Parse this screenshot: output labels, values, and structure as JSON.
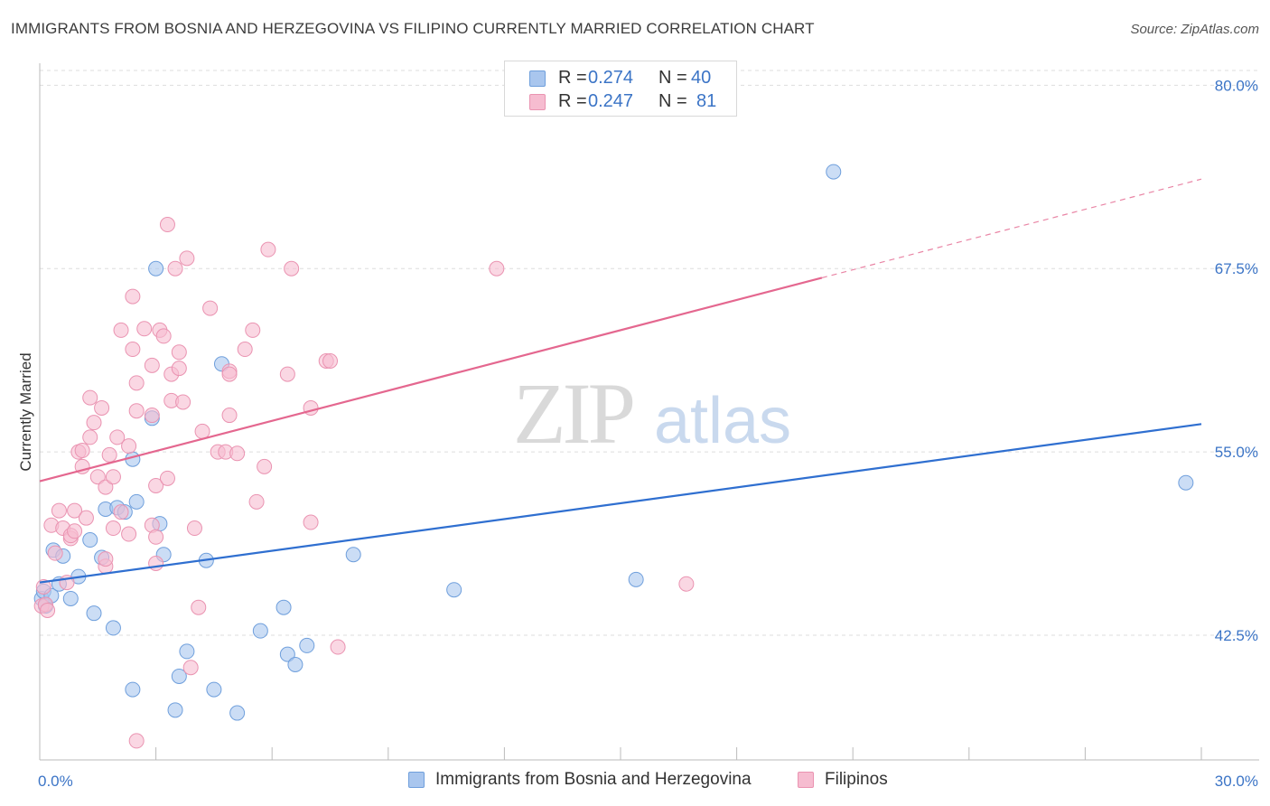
{
  "header": {
    "title": "IMMIGRANTS FROM BOSNIA AND HERZEGOVINA VS FILIPINO CURRENTLY MARRIED CORRELATION CHART",
    "source": "Source: ZipAtlas.com"
  },
  "legend": {
    "r_label": "R =",
    "n_label": "N =",
    "entries": [
      {
        "r": "0.274",
        "n": "40"
      },
      {
        "r": "0.247",
        "n": "81"
      }
    ]
  },
  "watermark": {
    "zip": "ZIP",
    "atlas": "atlas"
  },
  "colors": {
    "blue_fill": "#a9c6ee",
    "blue_stroke": "#6f9fdc",
    "blue_line": "#2f6fd0",
    "pink_fill": "#f6bcd0",
    "pink_stroke": "#ea93b1",
    "pink_line": "#e4678f",
    "tick_text": "#3b74c6",
    "grid": "#dddddd"
  },
  "chart_data": {
    "type": "scatter",
    "title": "IMMIGRANTS FROM BOSNIA AND HERZEGOVINA VS FILIPINO CURRENTLY MARRIED CORRELATION CHART",
    "xlabel": "",
    "ylabel": "Currently Married",
    "xlim": [
      0,
      30
    ],
    "ylim": [
      34,
      81.5
    ],
    "x_tick_labels": [
      {
        "value": 0,
        "label": "0.0%"
      },
      {
        "value": 30,
        "label": "30.0%"
      }
    ],
    "y_tick_labels": [
      {
        "value": 80.0,
        "label": "80.0%"
      },
      {
        "value": 67.5,
        "label": "67.5%"
      },
      {
        "value": 55.0,
        "label": "55.0%"
      },
      {
        "value": 42.5,
        "label": "42.5%"
      }
    ],
    "series": [
      {
        "name": "Immigrants from Bosnia and Herzegovina",
        "color": "#a9c6ee",
        "trend": {
          "x": [
            0,
            30
          ],
          "y": [
            46.1,
            56.9
          ],
          "dashed_from": null
        },
        "points": [
          [
            0.05,
            45.0
          ],
          [
            0.1,
            45.5
          ],
          [
            0.15,
            44.5
          ],
          [
            0.3,
            45.2
          ],
          [
            0.35,
            48.3
          ],
          [
            0.5,
            46.0
          ],
          [
            0.6,
            47.9
          ],
          [
            0.8,
            45.0
          ],
          [
            1.0,
            46.5
          ],
          [
            1.3,
            49.0
          ],
          [
            1.4,
            44.0
          ],
          [
            1.6,
            47.8
          ],
          [
            1.7,
            51.1
          ],
          [
            1.9,
            43.0
          ],
          [
            2.0,
            51.2
          ],
          [
            2.2,
            50.9
          ],
          [
            2.4,
            38.8
          ],
          [
            2.4,
            54.5
          ],
          [
            2.5,
            51.6
          ],
          [
            2.9,
            57.3
          ],
          [
            3.0,
            67.5
          ],
          [
            3.1,
            50.1
          ],
          [
            3.2,
            48.0
          ],
          [
            3.5,
            37.4
          ],
          [
            3.6,
            39.7
          ],
          [
            3.8,
            41.4
          ],
          [
            4.3,
            47.6
          ],
          [
            4.5,
            38.8
          ],
          [
            4.7,
            61.0
          ],
          [
            5.1,
            37.2
          ],
          [
            5.7,
            42.8
          ],
          [
            6.3,
            44.4
          ],
          [
            6.4,
            41.2
          ],
          [
            6.6,
            40.5
          ],
          [
            6.9,
            41.8
          ],
          [
            8.1,
            48.0
          ],
          [
            10.7,
            45.6
          ],
          [
            15.4,
            46.3
          ],
          [
            20.5,
            74.1
          ],
          [
            29.6,
            52.9
          ]
        ]
      },
      {
        "name": "Filipinos",
        "color": "#f6bcd0",
        "trend": {
          "x": [
            0,
            30
          ],
          "y": [
            53.0,
            73.6
          ],
          "dashed_from": 20.2
        },
        "points": [
          [
            0.05,
            44.5
          ],
          [
            0.1,
            45.8
          ],
          [
            0.15,
            44.6
          ],
          [
            0.2,
            44.2
          ],
          [
            0.3,
            50.0
          ],
          [
            0.4,
            48.1
          ],
          [
            0.5,
            51.0
          ],
          [
            0.6,
            49.8
          ],
          [
            0.7,
            46.1
          ],
          [
            0.8,
            49.1
          ],
          [
            0.8,
            49.3
          ],
          [
            0.9,
            49.6
          ],
          [
            0.9,
            51.0
          ],
          [
            1.0,
            55.0
          ],
          [
            1.1,
            54.0
          ],
          [
            1.1,
            55.1
          ],
          [
            1.2,
            50.5
          ],
          [
            1.3,
            56.0
          ],
          [
            1.3,
            58.7
          ],
          [
            1.4,
            57.0
          ],
          [
            1.5,
            53.3
          ],
          [
            1.6,
            58.0
          ],
          [
            1.7,
            47.2
          ],
          [
            1.7,
            47.7
          ],
          [
            1.7,
            52.6
          ],
          [
            1.8,
            54.8
          ],
          [
            1.9,
            49.8
          ],
          [
            1.9,
            53.3
          ],
          [
            2.0,
            56.0
          ],
          [
            2.1,
            63.3
          ],
          [
            2.1,
            50.9
          ],
          [
            2.3,
            49.4
          ],
          [
            2.3,
            55.4
          ],
          [
            2.4,
            62.0
          ],
          [
            2.4,
            65.6
          ],
          [
            2.5,
            59.7
          ],
          [
            2.5,
            57.8
          ],
          [
            2.5,
            35.3
          ],
          [
            2.7,
            63.4
          ],
          [
            2.9,
            50.0
          ],
          [
            2.9,
            60.9
          ],
          [
            2.9,
            57.5
          ],
          [
            3.0,
            52.7
          ],
          [
            3.0,
            47.4
          ],
          [
            3.0,
            49.2
          ],
          [
            3.1,
            63.3
          ],
          [
            3.2,
            62.9
          ],
          [
            3.3,
            53.2
          ],
          [
            3.3,
            70.5
          ],
          [
            3.4,
            58.5
          ],
          [
            3.4,
            60.3
          ],
          [
            3.5,
            67.5
          ],
          [
            3.6,
            60.7
          ],
          [
            3.6,
            61.8
          ],
          [
            3.7,
            58.4
          ],
          [
            3.8,
            68.2
          ],
          [
            3.9,
            40.3
          ],
          [
            4.0,
            49.8
          ],
          [
            4.1,
            44.4
          ],
          [
            4.2,
            56.4
          ],
          [
            4.4,
            64.8
          ],
          [
            4.6,
            55.0
          ],
          [
            4.8,
            55.0
          ],
          [
            4.9,
            60.5
          ],
          [
            4.9,
            60.3
          ],
          [
            4.9,
            57.5
          ],
          [
            5.1,
            54.9
          ],
          [
            5.3,
            62.0
          ],
          [
            5.5,
            63.3
          ],
          [
            5.6,
            51.6
          ],
          [
            5.8,
            54.0
          ],
          [
            5.9,
            68.8
          ],
          [
            6.4,
            60.3
          ],
          [
            6.5,
            67.5
          ],
          [
            7.0,
            50.2
          ],
          [
            7.0,
            58.0
          ],
          [
            7.4,
            61.2
          ],
          [
            7.5,
            61.2
          ],
          [
            7.7,
            41.7
          ],
          [
            11.8,
            67.5
          ],
          [
            16.7,
            46.0
          ]
        ]
      }
    ]
  },
  "bottom_legend": [
    {
      "label": "Immigrants from Bosnia and Herzegovina"
    },
    {
      "label": "Filipinos"
    }
  ]
}
